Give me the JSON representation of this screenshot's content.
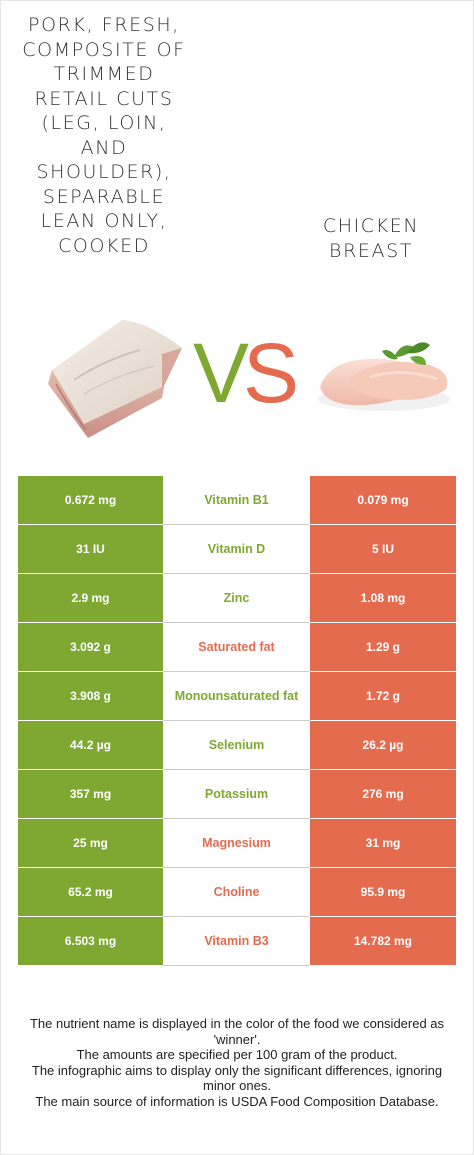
{
  "left_food": {
    "title": "Pork, fresh, composite of trimmed retail cuts (leg, loin, and shoulder), separable lean only, cooked",
    "color": "#7fa833"
  },
  "right_food": {
    "title": "Chicken breast",
    "color": "#e56b4f"
  },
  "vs": {
    "v": "V",
    "s": "S"
  },
  "rows": [
    {
      "left": "0.672 mg",
      "nutrient": "Vitamin B1",
      "right": "0.079 mg",
      "winner": "left"
    },
    {
      "left": "31 IU",
      "nutrient": "Vitamin D",
      "right": "5 IU",
      "winner": "left"
    },
    {
      "left": "2.9 mg",
      "nutrient": "Zinc",
      "right": "1.08 mg",
      "winner": "left"
    },
    {
      "left": "3.092 g",
      "nutrient": "Saturated fat",
      "right": "1.29 g",
      "winner": "right"
    },
    {
      "left": "3.908 g",
      "nutrient": "Monounsaturated fat",
      "right": "1.72 g",
      "winner": "left"
    },
    {
      "left": "44.2 µg",
      "nutrient": "Selenium",
      "right": "26.2 µg",
      "winner": "left"
    },
    {
      "left": "357 mg",
      "nutrient": "Potassium",
      "right": "276 mg",
      "winner": "left"
    },
    {
      "left": "25 mg",
      "nutrient": "Magnesium",
      "right": "31 mg",
      "winner": "right"
    },
    {
      "left": "65.2 mg",
      "nutrient": "Choline",
      "right": "95.9 mg",
      "winner": "right"
    },
    {
      "left": "6.503 mg",
      "nutrient": "Vitamin B3",
      "right": "14.782 mg",
      "winner": "right"
    }
  ],
  "notes": [
    "The nutrient name is displayed in the color of the food we considered as 'winner'.",
    "The amounts are specified per 100 gram of the product.",
    "The infographic aims to display only the significant differences, ignoring minor ones.",
    "The main source of information is USDA Food Composition Database."
  ]
}
